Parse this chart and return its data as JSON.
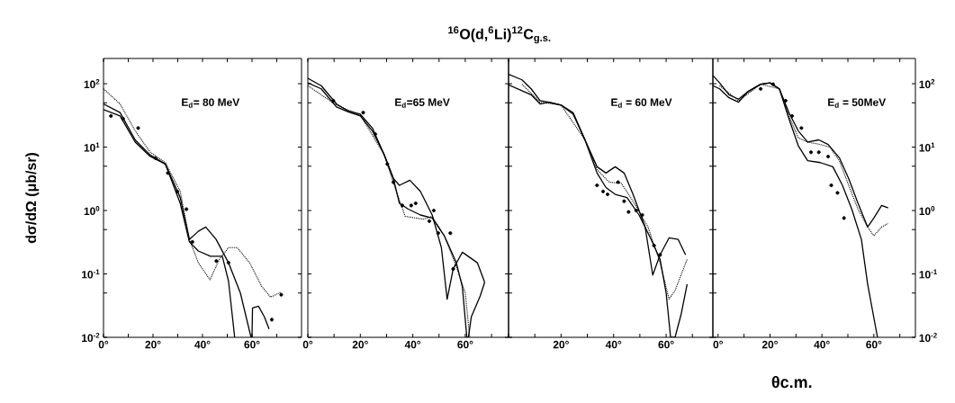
{
  "chart_data": [
    {
      "type": "line",
      "log": "y",
      "ylabel": "dσ/dΩ (μb/sr)",
      "annotations": [
        "E$_{d}$= 80 MeV"
      ],
      "xlim": [
        0,
        80
      ],
      "ylim": [
        0.01,
        250
      ],
      "xticks": [
        {
          "value": 0,
          "label": "0°"
        },
        {
          "value": 10,
          "label": null
        },
        {
          "value": 20,
          "label": "20°"
        },
        {
          "value": 30,
          "label": null
        },
        {
          "value": 40,
          "label": "40°"
        },
        {
          "value": 50,
          "label": null
        },
        {
          "value": 60,
          "label": "60°"
        },
        {
          "value": 70,
          "label": null
        }
      ],
      "yticks": [
        {
          "value": 0.01,
          "label": "10$^{-2}$"
        },
        {
          "value": 0.05,
          "label": null
        },
        {
          "value": 0.1,
          "label": "10$^{-1}$"
        },
        {
          "value": 0.5,
          "label": null
        },
        {
          "value": 1,
          "label": "10$^{0}$"
        },
        {
          "value": 5,
          "label": null
        },
        {
          "value": 10,
          "label": "10$^{1}$"
        },
        {
          "value": 50,
          "label": null
        },
        {
          "value": 100,
          "label": "10$^{2}$"
        }
      ],
      "series": [
        {
          "type": "line",
          "color": "#000000",
          "line_style": "solid",
          "marker": "none",
          "x": [
            0,
            6.7,
            12.8,
            18.9,
            25,
            31,
            34.7,
            38.3,
            41.3,
            45.5,
            50.5,
            55.3,
            59.6,
            60,
            60.2,
            62.6,
            65,
            66.9
          ],
          "values": [
            48,
            35,
            13,
            7.5,
            5.4,
            1.6,
            0.35,
            0.47,
            0.55,
            0.35,
            0.15,
            0.05,
            0.01,
            0.01,
            0.029,
            0.031,
            0.021,
            0.0135
          ]
        },
        {
          "type": "line",
          "color": "#000000",
          "line_style": "solid",
          "marker": "none",
          "x": [
            0,
            6.7,
            12.8,
            18.9,
            25,
            31,
            34.7,
            38.3,
            43.2,
            48,
            50.5,
            53
          ],
          "values": [
            39,
            31,
            12,
            7.1,
            5.4,
            1.3,
            0.32,
            0.23,
            0.19,
            0.19,
            0.077,
            0.01
          ]
        },
        {
          "type": "line",
          "color": "#000000",
          "line_style": "dotted",
          "marker": "none",
          "x": [
            0,
            6.7,
            12.8,
            18.9,
            25,
            31,
            34.7,
            38.3,
            43,
            46.8,
            50.5,
            54,
            59,
            64,
            67.5,
            71.8
          ],
          "values": [
            83,
            48,
            18,
            8.3,
            5.7,
            2.0,
            0.35,
            0.15,
            0.081,
            0.17,
            0.26,
            0.26,
            0.15,
            0.063,
            0.043,
            0.052
          ]
        },
        {
          "type": "scatter",
          "color": "#000000",
          "marker": "circle",
          "x": [
            3,
            7.9,
            14,
            21,
            26,
            29.8,
            33.5,
            35.9,
            45.6,
            50.5,
            68,
            71.8
          ],
          "values": [
            31,
            28,
            20,
            6.7,
            3.9,
            2.0,
            1.05,
            0.32,
            0.16,
            0.15,
            0.019,
            0.047
          ]
        }
      ]
    },
    {
      "type": "line",
      "log": "y",
      "tick_labels": "x",
      "annotations": [
        "E$_{d}$=65 MeV"
      ],
      "xlim": [
        0,
        76.5
      ],
      "ylim": [
        0.01,
        250
      ],
      "xticks": [
        {
          "value": 0,
          "label": "0°"
        },
        {
          "value": 10,
          "label": null
        },
        {
          "value": 20,
          "label": "20°"
        },
        {
          "value": 30,
          "label": null
        },
        {
          "value": 40,
          "label": "40°"
        },
        {
          "value": 50,
          "label": null
        },
        {
          "value": 60,
          "label": "60°"
        },
        {
          "value": 70,
          "label": null
        }
      ],
      "yticks": [
        {
          "value": 0.01,
          "label": null
        },
        {
          "value": 0.05,
          "label": null
        },
        {
          "value": 0.1,
          "label": null
        },
        {
          "value": 0.5,
          "label": null
        },
        {
          "value": 1,
          "label": null
        },
        {
          "value": 5,
          "label": null
        },
        {
          "value": 10,
          "label": null
        },
        {
          "value": 50,
          "label": null
        },
        {
          "value": 100,
          "label": null
        }
      ],
      "series": [
        {
          "type": "line",
          "color": "#000000",
          "line_style": "solid",
          "marker": "none",
          "x": [
            0,
            5.1,
            10.9,
            15.4,
            20,
            24.6,
            29.1,
            32.6,
            34.9,
            38.9,
            42.9,
            47.4,
            50.9,
            53.1,
            55.4,
            58.9,
            64.6,
            67.4
          ],
          "values": [
            122,
            93,
            48,
            37,
            33,
            20,
            7.6,
            3.2,
            2.5,
            3.0,
            2.0,
            0.85,
            0.26,
            0.04,
            0.12,
            0.22,
            0.15,
            0.074
          ]
        },
        {
          "type": "line",
          "color": "#000000",
          "line_style": "solid",
          "marker": "none",
          "x": [
            0,
            5.1,
            10.9,
            15.4,
            20,
            24.6,
            29.1,
            32.6,
            34.9,
            38.3,
            42.9,
            47.4,
            52,
            56.6,
            58.9,
            60.6,
            61.2,
            62.3,
            65.7,
            67.4
          ],
          "values": [
            103,
            83,
            43,
            36,
            31,
            18,
            7.6,
            3.2,
            1.3,
            1.05,
            0.85,
            0.76,
            0.4,
            0.15,
            0.062,
            0.01,
            0.01,
            0.021,
            0.045,
            0.074
          ]
        },
        {
          "type": "line",
          "color": "#000000",
          "line_style": "dotted",
          "marker": "none",
          "x": [
            0,
            10.9,
            20,
            29.1,
            33.7,
            37.1,
            44,
            47.4,
            52,
            56.6,
            60,
            61.7
          ],
          "values": [
            93,
            46,
            32,
            7.6,
            2.0,
            0.81,
            0.73,
            0.81,
            0.4,
            0.13,
            0.05,
            0.01
          ]
        },
        {
          "type": "scatter",
          "color": "#000000",
          "marker": "circle",
          "x": [
            9.7,
            21.1,
            25.7,
            30.3,
            32.6,
            36,
            39.4,
            41.1,
            46.3,
            48,
            49.7,
            54.3,
            55.4
          ],
          "values": [
            54,
            35,
            16,
            5.4,
            2.8,
            1.2,
            1.2,
            1.3,
            0.68,
            1.0,
            0.44,
            0.44,
            0.12
          ]
        }
      ]
    },
    {
      "type": "line",
      "log": "y",
      "tick_labels": "x",
      "title": "$^{16}$O(d,$^{6}$Li)$^{12}$C$_{g.s.}$",
      "annotations": [
        "E$_{d}$ = 60 MeV"
      ],
      "xlim": [
        0,
        77.8
      ],
      "ylim": [
        0.01,
        250
      ],
      "xticks": [
        {
          "value": 0,
          "label": null
        },
        {
          "value": 10,
          "label": null
        },
        {
          "value": 20,
          "label": "20°"
        },
        {
          "value": 30,
          "label": null
        },
        {
          "value": 40,
          "label": "40°"
        },
        {
          "value": 50,
          "label": null
        },
        {
          "value": 60,
          "label": "60°"
        },
        {
          "value": 70,
          "label": null
        }
      ],
      "yticks": [
        {
          "value": 0.01,
          "label": null
        },
        {
          "value": 0.05,
          "label": null
        },
        {
          "value": 0.1,
          "label": null
        },
        {
          "value": 0.5,
          "label": null
        },
        {
          "value": 1,
          "label": null
        },
        {
          "value": 5,
          "label": null
        },
        {
          "value": 10,
          "label": null
        },
        {
          "value": 50,
          "label": null
        },
        {
          "value": 100,
          "label": null
        }
      ],
      "series": [
        {
          "type": "line",
          "color": "#000000",
          "line_style": "solid",
          "marker": "none",
          "x": [
            0,
            5.1,
            8.6,
            12,
            15.4,
            20,
            24.6,
            29.1,
            33.7,
            37.1,
            40.6,
            44,
            47.4,
            52,
            54.9,
            57.7,
            61.1,
            64.6,
            67.4
          ],
          "values": [
            141,
            115,
            83,
            54,
            51,
            46,
            35,
            13,
            4.9,
            3.9,
            4.9,
            3.9,
            1.8,
            0.55,
            0.096,
            0.2,
            0.37,
            0.35,
            0.2
          ]
        },
        {
          "type": "line",
          "color": "#000000",
          "line_style": "solid",
          "marker": "none",
          "x": [
            0,
            8.6,
            12,
            15.4,
            20,
            24.6,
            29.1,
            33.7,
            37.1,
            40.6,
            45.1,
            49.7,
            54.3,
            57.7,
            60,
            61.7,
            63.4,
            65.7,
            68
          ],
          "values": [
            96,
            67,
            48,
            51,
            46,
            33,
            13,
            3.9,
            2.3,
            1.8,
            1.6,
            0.85,
            0.35,
            0.17,
            0.05,
            0.01,
            0.01,
            0.023,
            0.069
          ]
        },
        {
          "type": "line",
          "color": "#000000",
          "line_style": "dotted",
          "marker": "none",
          "x": [
            5.1,
            12,
            20,
            29.1,
            33.7,
            38.3,
            42.9,
            47.4,
            53.1,
            57.7,
            61.1,
            63.4,
            68
          ],
          "values": [
            98,
            51,
            46,
            13,
            4.4,
            2.8,
            2.7,
            1.4,
            0.55,
            0.15,
            0.04,
            0.055,
            0.17
          ]
        },
        {
          "type": "scatter",
          "color": "#000000",
          "marker": "circle",
          "x": [
            33.7,
            36,
            37.7,
            41.7,
            44,
            45.7,
            48.6,
            50.9,
            55.4,
            57.7
          ],
          "values": [
            2.5,
            2.0,
            1.8,
            2.8,
            1.4,
            0.95,
            1.0,
            0.85,
            0.28,
            0.2
          ]
        }
      ]
    },
    {
      "type": "line",
      "log": "y",
      "xlabel": "θc.m.",
      "annotations": [
        "E$_{d}$ = 50MeV"
      ],
      "xlim": [
        -2,
        76
      ],
      "ylim": [
        0.01,
        250
      ],
      "xticks": [
        {
          "value": 0,
          "label": "0°"
        },
        {
          "value": 10,
          "label": null
        },
        {
          "value": 20,
          "label": "20°"
        },
        {
          "value": 30,
          "label": null
        },
        {
          "value": 40,
          "label": "40°"
        },
        {
          "value": 50,
          "label": null
        },
        {
          "value": 60,
          "label": "60°"
        },
        {
          "value": 70,
          "label": null
        }
      ],
      "yticks": [
        {
          "value": 0.01,
          "label": "10$^{-2}$"
        },
        {
          "value": 0.05,
          "label": null
        },
        {
          "value": 0.1,
          "label": "10$^{-1}$"
        },
        {
          "value": 0.5,
          "label": null
        },
        {
          "value": 1,
          "label": "10$^{0}$"
        },
        {
          "value": 5,
          "label": null
        },
        {
          "value": 10,
          "label": "10$^{1}$"
        },
        {
          "value": 50,
          "label": null
        },
        {
          "value": 100,
          "label": "10$^{2}$"
        }
      ],
      "series": [
        {
          "type": "line",
          "color": "#000000",
          "line_style": "solid",
          "marker": "none",
          "x": [
            -2,
            0.6,
            4.2,
            7.9,
            11.5,
            16.4,
            20,
            23.6,
            27.3,
            30.9,
            34.5,
            38.8,
            42.4,
            46.7,
            50.3,
            53.9,
            57.6,
            60,
            63,
            65.5
          ],
          "values": [
            135,
            103,
            67,
            57,
            75,
            98,
            103,
            83,
            35,
            18,
            12,
            13,
            11,
            6.8,
            3.2,
            1.3,
            0.55,
            0.76,
            1.2,
            1.1
          ]
        },
        {
          "type": "line",
          "color": "#000000",
          "line_style": "solid",
          "marker": "none",
          "x": [
            -2,
            0.6,
            4.2,
            7.9,
            11.5,
            16.4,
            20,
            23.6,
            27.3,
            30.9,
            34.5,
            39.4,
            44.2,
            47.9,
            51.5,
            55.2,
            57.6,
            61.4
          ],
          "values": [
            93,
            83,
            60,
            51,
            75,
            98,
            103,
            83,
            28,
            10.5,
            6.1,
            5.7,
            4.9,
            2.5,
            1.05,
            0.35,
            0.069,
            0.01
          ]
        },
        {
          "type": "line",
          "color": "#000000",
          "line_style": "dotted",
          "marker": "none",
          "x": [
            0.6,
            7.9,
            16.4,
            23.6,
            27.3,
            30.9,
            34.5,
            39.4,
            43,
            46.7,
            50.3,
            53.9,
            57.6,
            60,
            63,
            65.5
          ],
          "values": [
            93,
            54,
            98,
            83,
            31,
            14,
            12,
            11,
            10,
            6.1,
            2.5,
            1.05,
            0.55,
            0.4,
            0.55,
            0.63
          ]
        },
        {
          "type": "scatter",
          "color": "#000000",
          "marker": "circle",
          "x": [
            16.4,
            21.2,
            26,
            28.5,
            32.1,
            35.8,
            38.8,
            42.4,
            43.6,
            46,
            48.5
          ],
          "values": [
            83,
            98,
            54,
            31,
            20,
            8.3,
            8.3,
            7.1,
            2.5,
            1.9,
            0.76
          ]
        }
      ]
    }
  ]
}
